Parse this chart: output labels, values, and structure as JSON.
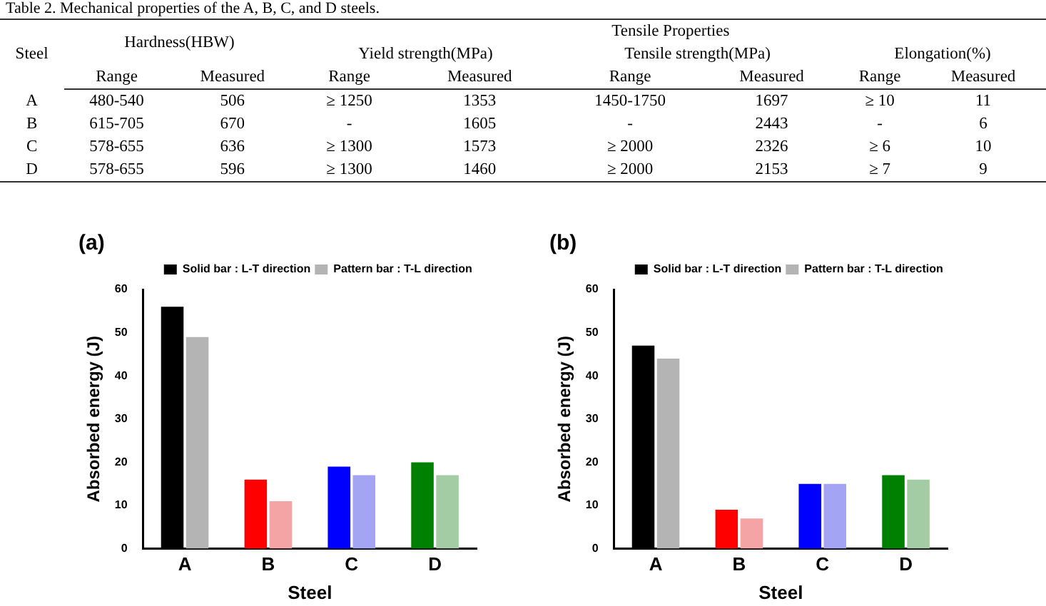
{
  "chart_data": [
    {
      "type": "other",
      "title": "Table 2. Mechanical properties of the A, B, C, and D steels.",
      "annotations": [
        "Steel",
        "Hardness(HBW)",
        "Tensile Properties",
        "Yield strength(MPa)",
        "Tensile strength(MPa)",
        "Elongation(%)"
      ],
      "categories": [
        "Range",
        "Measured",
        "Range",
        "Measured",
        "Range",
        "Measured",
        "Range",
        "Measured"
      ],
      "y_categories": [
        "A",
        "B",
        "C",
        "D"
      ],
      "cell_labels": [
        [
          "480-540",
          "506",
          "≥ 1250",
          "1353",
          "1450-1750",
          "1697",
          "≥ 10",
          "11"
        ],
        [
          "615-705",
          "670",
          "-",
          "1605",
          "-",
          "2443",
          "-",
          "6"
        ],
        [
          "578-655",
          "636",
          "≥ 1300",
          "1573",
          "≥ 2000",
          "2326",
          "≥ 6",
          "10"
        ],
        [
          "578-655",
          "596",
          "≥ 1300",
          "1460",
          "≥ 2000",
          "2153",
          "≥ 7",
          "9"
        ]
      ]
    },
    {
      "type": "bar",
      "title": "(a)",
      "xlabel": "Steel",
      "ylabel": "Absorbed energy (J)",
      "categories": [
        "A",
        "B",
        "C",
        "D"
      ],
      "series": [
        {
          "name": "Solid bar : L-T direction",
          "colors": [
            "#000000",
            "#ff0000",
            "#0000ff",
            "#008000"
          ],
          "values": [
            56,
            16,
            19,
            20
          ]
        },
        {
          "name": "Pattern bar : T-L direction",
          "colors": [
            "#b4b4b4",
            "#f4a4a4",
            "#a4a4f4",
            "#a4cca4"
          ],
          "values": [
            49,
            11,
            17,
            17
          ]
        }
      ],
      "ylim": [
        0,
        60
      ],
      "yticks": [
        0,
        10,
        20,
        30,
        40,
        50,
        60
      ],
      "grid": false,
      "legend": "top right"
    },
    {
      "type": "bar",
      "title": "(b)",
      "xlabel": "Steel",
      "ylabel": "Absorbed energy (J)",
      "categories": [
        "A",
        "B",
        "C",
        "D"
      ],
      "series": [
        {
          "name": "Solid bar : L-T direction",
          "colors": [
            "#000000",
            "#ff0000",
            "#0000ff",
            "#008000"
          ],
          "values": [
            47,
            9,
            15,
            17
          ]
        },
        {
          "name": "Pattern bar : T-L direction",
          "colors": [
            "#b4b4b4",
            "#f4a4a4",
            "#a4a4f4",
            "#a4cca4"
          ],
          "values": [
            44,
            7,
            15,
            16
          ]
        }
      ],
      "ylim": [
        0,
        60
      ],
      "yticks": [
        0,
        10,
        20,
        30,
        40,
        50,
        60
      ],
      "grid": false,
      "legend": "top right"
    }
  ]
}
